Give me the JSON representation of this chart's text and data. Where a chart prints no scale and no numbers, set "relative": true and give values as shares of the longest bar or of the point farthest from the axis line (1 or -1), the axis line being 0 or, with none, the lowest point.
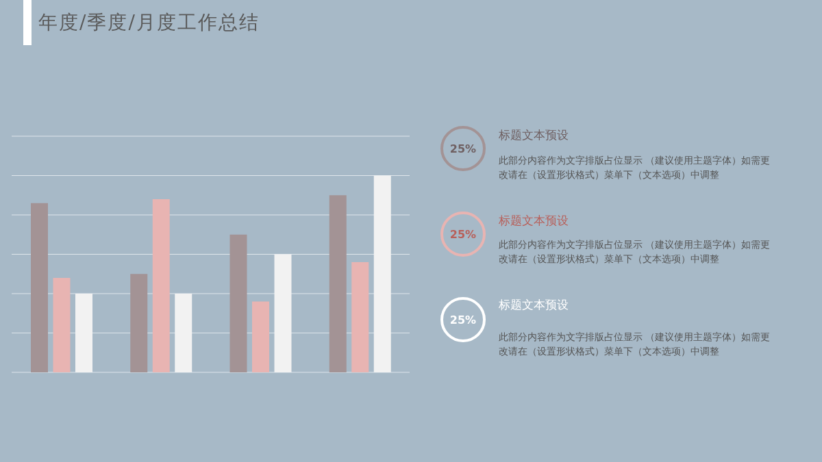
{
  "chart_data": [
    {
      "type": "bar",
      "title": "年度/季度/月度工作总结",
      "relative": true,
      "grid": true,
      "categories": [
        null,
        null,
        null,
        null
      ],
      "series": [
        {
          "color": "#a39395",
          "values": [
            0.86,
            0.5,
            0.7,
            0.9
          ]
        },
        {
          "color": "#e8b4b2",
          "values": [
            0.48,
            0.88,
            0.36,
            0.56
          ]
        },
        {
          "color": "#f2f2f2",
          "values": [
            0.4,
            0.4,
            0.6,
            1.0
          ]
        }
      ]
    },
    {
      "type": "other",
      "categories": [
        "标题文本预设",
        "标题文本预设",
        "标题文本预设"
      ],
      "value_labels": [
        "25%",
        "25%",
        "25%"
      ],
      "colors": [
        "#a39395",
        "#e8b4b2",
        "#ffffff"
      ],
      "annotations": [
        "此部分内容作为文字排版占位显示 （建议使用主题字体）如需更改请在（设置形状格式）菜单下（文本选项）中调整",
        "此部分内容作为文字排版占位显示 （建议使用主题字体）如需更改请在（设置形状格式）菜单下（文本选项）中调整",
        "此部分内容作为文字排版占位显示 （建议使用主题字体）如需更改请在（设置形状格式）菜单下（文本选项）中调整"
      ]
    }
  ]
}
